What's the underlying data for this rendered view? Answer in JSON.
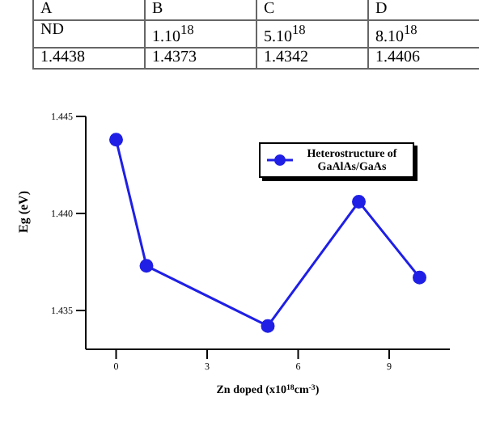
{
  "chart_data": {
    "type": "line",
    "annotations": [
      "A",
      "B",
      "C",
      "D",
      "ND",
      "1.10$^{18}$",
      "5.10$^{18}$",
      "8.10$^{18}$",
      "1.4438",
      "1.4373",
      "1.4342",
      "1.4406"
    ],
    "xlabel": "Zn doped (x10$^{18}$cm$^{-3}$)",
    "ylabel": "Eg (eV)",
    "x": [
      0,
      1,
      5,
      8,
      10
    ],
    "series": [
      {
        "name": "Heterostructure of GaAlAs/GaAs",
        "color": "#1f1fe6",
        "values": [
          1.4438,
          1.4373,
          1.4342,
          1.4406,
          1.4367
        ]
      }
    ],
    "xlim": [
      -1,
      11
    ],
    "xticks": [
      0,
      3,
      6,
      9
    ],
    "ylim": [
      1.433,
      1.445
    ],
    "yticks": [
      {
        "value": 1.435,
        "label": "1.435"
      },
      {
        "value": 1.44,
        "label": "1.440"
      },
      {
        "value": 1.445,
        "label": "1.445"
      }
    ],
    "marker": "circle",
    "legend": "top right",
    "grid": false
  }
}
